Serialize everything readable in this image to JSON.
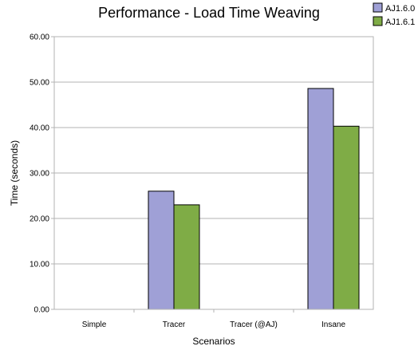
{
  "chart_data": {
    "type": "bar",
    "title": "Performance - Load Time Weaving",
    "xlabel": "Scenarios",
    "ylabel": "Time (seconds)",
    "categories": [
      "Simple",
      "Tracer",
      "Tracer (@AJ)",
      "Insane"
    ],
    "series": [
      {
        "name": "AJ1.6.0",
        "color": "#9fa0d6",
        "values": [
          0,
          26.0,
          0,
          48.6
        ]
      },
      {
        "name": "AJ1.6.1",
        "color": "#7fac46",
        "values": [
          0,
          23.0,
          0,
          40.3
        ]
      }
    ],
    "ylim": [
      0,
      60
    ],
    "yticks": [
      "0.00",
      "10.00",
      "20.00",
      "30.00",
      "40.00",
      "50.00",
      "60.00"
    ],
    "grid": true,
    "legend_position": "top-right"
  }
}
